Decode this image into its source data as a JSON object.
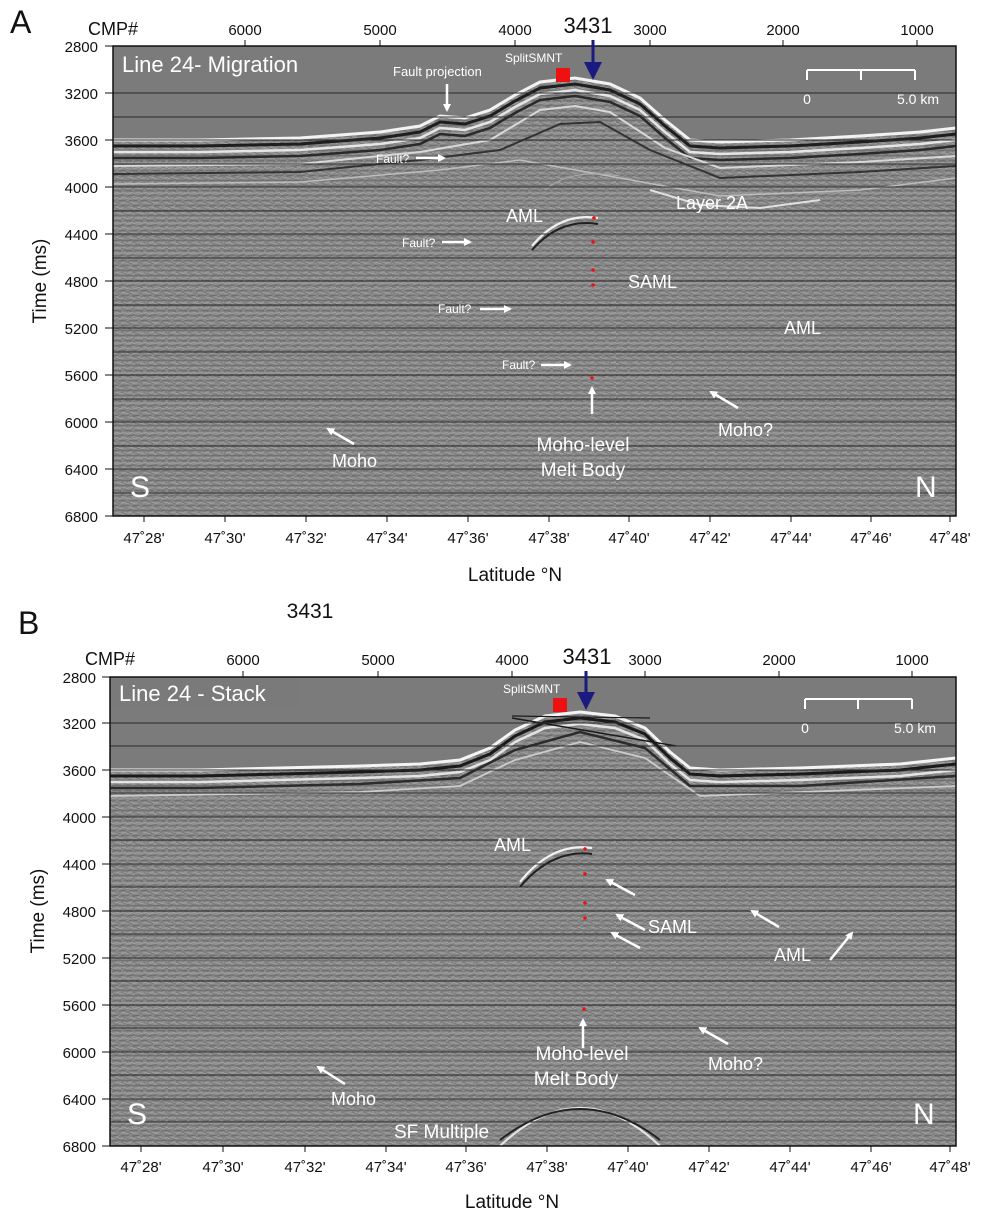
{
  "figure": {
    "panel_a_letter": "A",
    "panel_b_letter": "B",
    "stray_label": "3431"
  },
  "colors": {
    "page_background": "#ffffff",
    "water_gray": "#7b7b7b",
    "section_gray": "#888888",
    "marker_red": "#ee1111",
    "arrow_navy": "#1a1a80",
    "annotation_white": "#ffffff"
  },
  "axes": {
    "cmp_axis_label": "CMP#",
    "cmp_ticks": [
      "6000",
      "5000",
      "4000",
      "3000",
      "2000",
      "1000"
    ],
    "cmp_highlight": "3431",
    "time_axis_label": "Time (ms)",
    "time_ticks": [
      "2800",
      "3200",
      "3600",
      "4000",
      "4400",
      "4800",
      "5200",
      "5600",
      "6000",
      "6400",
      "6800"
    ],
    "time_range_ms": [
      2800,
      6800
    ],
    "latitude_axis_label": "Latitude °N",
    "latitude_ticks": [
      "47˚28'",
      "47˚30'",
      "47˚32'",
      "47˚34'",
      "47˚36'",
      "47˚38'",
      "47˚40'",
      "47˚42'",
      "47˚44'",
      "47˚46'",
      "47˚48'"
    ]
  },
  "panels": [
    {
      "title": "Line 24- Migration",
      "site_label": "SplitSMNT",
      "scale_bar": {
        "start": "0",
        "end": "5.0 km"
      },
      "side_left": "S",
      "side_right": "N",
      "annotations": {
        "fault_projection": "Fault projection",
        "fault_1": "Fault?",
        "fault_2": "Fault?",
        "fault_3": "Fault?",
        "fault_4": "Fault?",
        "aml_left": "AML",
        "layer2a": "Layer 2A",
        "saml": "SAML",
        "aml_right": "AML",
        "moho": "Moho",
        "moho_q": "Moho?",
        "melt_line1": "Moho-level",
        "melt_line2": "Melt Body"
      }
    },
    {
      "title": "Line 24 - Stack",
      "site_label": "SplitSMNT",
      "scale_bar": {
        "start": "0",
        "end": "5.0 km"
      },
      "side_left": "S",
      "side_right": "N",
      "annotations": {
        "aml_left": "AML",
        "saml": "SAML",
        "aml_right": "AML",
        "moho": "Moho",
        "moho_q": "Moho?",
        "melt_line1": "Moho-level",
        "melt_line2": "Melt Body",
        "sf_multiple": "SF Multiple"
      }
    }
  ]
}
